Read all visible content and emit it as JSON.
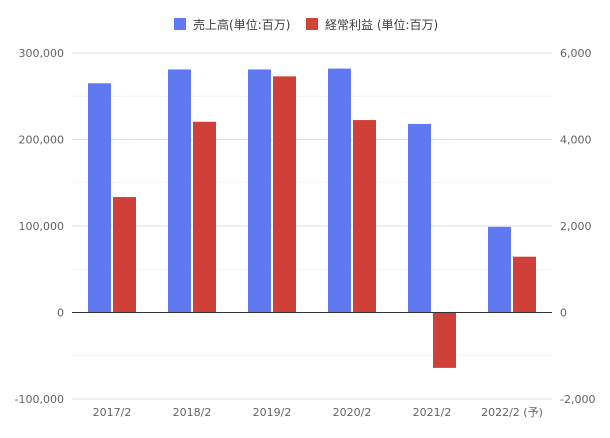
{
  "chart_data": {
    "type": "bar",
    "categories": [
      "2017/2",
      "2018/2",
      "2019/2",
      "2020/2",
      "2021/2",
      "2022/2 (予)"
    ],
    "series": [
      {
        "name": "売上高(単位:百万)",
        "axis": "left",
        "color": "#6079f0",
        "values": [
          265000,
          281000,
          281000,
          282000,
          218000,
          99000
        ]
      },
      {
        "name": "経常利益 (単位:百万)",
        "axis": "right",
        "color": "#cf4138",
        "values": [
          2670,
          4410,
          5460,
          4450,
          -1280,
          1290
        ]
      }
    ],
    "y_left": {
      "range": [
        -100000,
        300000
      ],
      "ticks": [
        300000,
        200000,
        100000,
        0,
        -100000
      ],
      "tick_labels": [
        "300,000",
        "200,000",
        "100,000",
        "0",
        "-100,000"
      ]
    },
    "y_right": {
      "range": [
        -2000,
        6000
      ],
      "ticks": [
        6000,
        4000,
        2000,
        0,
        -2000
      ],
      "tick_labels": [
        "6,000",
        "4,000",
        "2,000",
        "0",
        "-2,000"
      ]
    },
    "grid": true,
    "legend_position": "top-center"
  }
}
